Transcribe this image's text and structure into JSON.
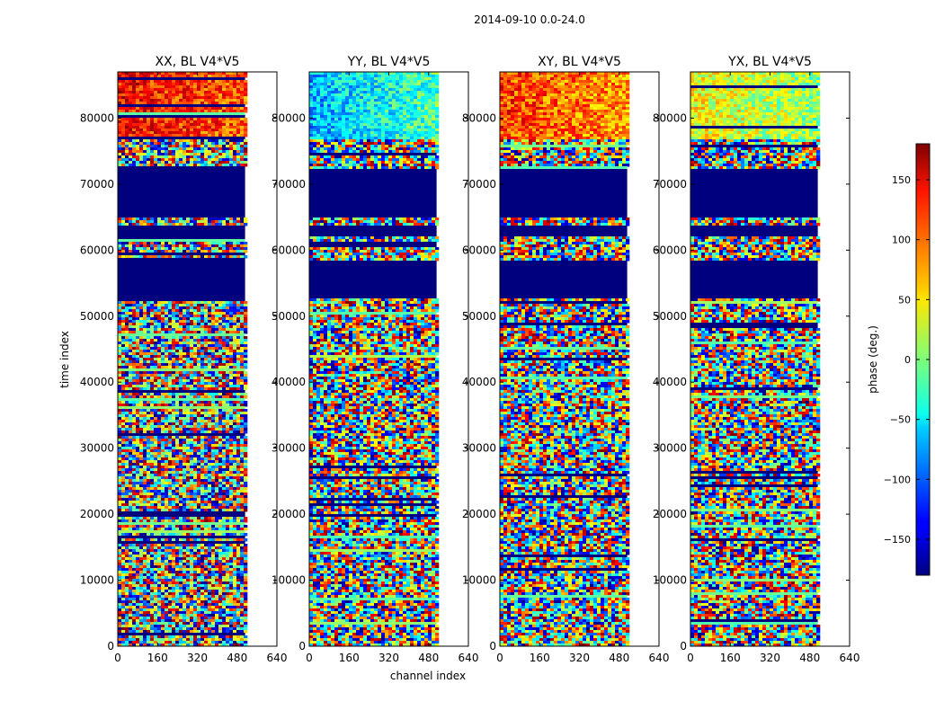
{
  "suptitle": "2014-09-10 0.0-24.0",
  "chart_data": {
    "type": "heatmap",
    "panels": [
      {
        "title": "XX, BL V4*V5",
        "pol": "XX",
        "top_pattern": "red"
      },
      {
        "title": "YY, BL V4*V5",
        "pol": "YY",
        "top_pattern": "cyan"
      },
      {
        "title": "XY, BL V4*V5",
        "pol": "XY",
        "top_pattern": "orange"
      },
      {
        "title": "YX, BL V4*V5",
        "pol": "YX",
        "top_pattern": "yellow"
      }
    ],
    "xlabel": "channel index",
    "ylabel": "time index",
    "xlim": [
      0,
      640
    ],
    "ylim": [
      0,
      87000
    ],
    "data_channels": [
      0,
      512
    ],
    "xticks": [
      0,
      160,
      320,
      480,
      640
    ],
    "yticks": [
      0,
      10000,
      20000,
      30000,
      40000,
      50000,
      60000,
      70000,
      80000
    ],
    "flagged_time_ranges": [
      [
        53000,
        58500
      ],
      [
        62300,
        64000
      ],
      [
        65000,
        72300
      ]
    ],
    "colorbar": {
      "label": "phase (deg.)",
      "range": [
        -180,
        180
      ],
      "ticks": [
        -150,
        -100,
        -50,
        0,
        50,
        100,
        150
      ],
      "colormap": "jet"
    },
    "colors": {
      "flagged": "#00007f",
      "frame": "#000000"
    }
  }
}
